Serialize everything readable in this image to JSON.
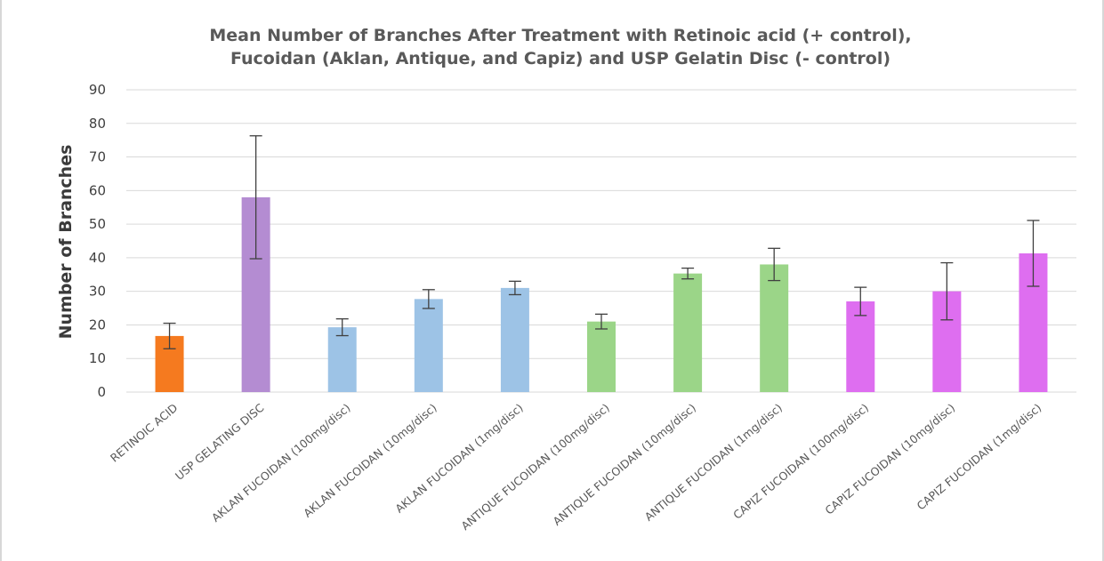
{
  "chart_data": {
    "type": "bar",
    "title": [
      "Mean Number of Branches After Treatment with Retinoic acid (+ control),",
      "Fucoidan (Aklan, Antique, and Capiz) and USP Gelatin Disc (- control)"
    ],
    "xlabel": "",
    "ylabel": "Number of Branches",
    "ylim": [
      0,
      90
    ],
    "yticks": [
      0,
      10,
      20,
      30,
      40,
      50,
      60,
      70,
      80,
      90
    ],
    "grid": true,
    "legend": "none",
    "categories": [
      "RETINOIC ACID",
      "USP GELATING DISC",
      "AKLAN FUCOIDAN (100mg/disc)",
      "AKLAN FUCOIDAN (10mg/disc)",
      "AKLAN FUCOIDAN (1mg/disc)",
      "ANTIQUE FUCOIDAN (100mg/disc)",
      "ANTIQUE FUCOIDAN (10mg/disc)",
      "ANTIQUE FUCOIDAN (1mg/disc)",
      "CAPIZ FUCOIDAN (100mg/disc)",
      "CAPIZ FUCOIDAN (10mg/disc)",
      "CAPIZ FUCOIDAN (1mg/disc)"
    ],
    "values": [
      16.7,
      58,
      19.3,
      27.7,
      31,
      21,
      35.3,
      38,
      27,
      30,
      41.3
    ],
    "errors": [
      3.8,
      18.3,
      2.5,
      2.8,
      2,
      2.2,
      1.6,
      4.8,
      4.2,
      8.5,
      9.8
    ],
    "colors": [
      "#f57a1f",
      "#b48cd2",
      "#9dc3e6",
      "#9dc3e6",
      "#9dc3e6",
      "#9bd588",
      "#9bd588",
      "#9bd588",
      "#de6ef0",
      "#de6ef0",
      "#de6ef0"
    ]
  }
}
